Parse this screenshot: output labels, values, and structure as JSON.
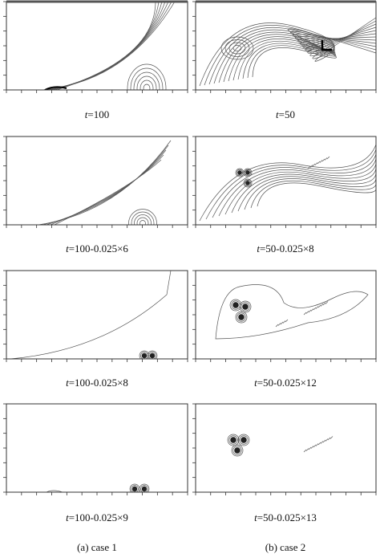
{
  "panels": [
    {
      "caption": "t=100"
    },
    {
      "caption": "t=50"
    },
    {
      "caption": "t=100-0.025×6"
    },
    {
      "caption": "t=50-0.025×8"
    },
    {
      "caption": "t=100-0.025×8"
    },
    {
      "caption": "t=50-0.025×12"
    },
    {
      "caption": "t=100-0.025×9"
    },
    {
      "caption": "t=50-0.025×13"
    }
  ],
  "column_labels": [
    "(a) case 1",
    "(b) case 2"
  ]
}
